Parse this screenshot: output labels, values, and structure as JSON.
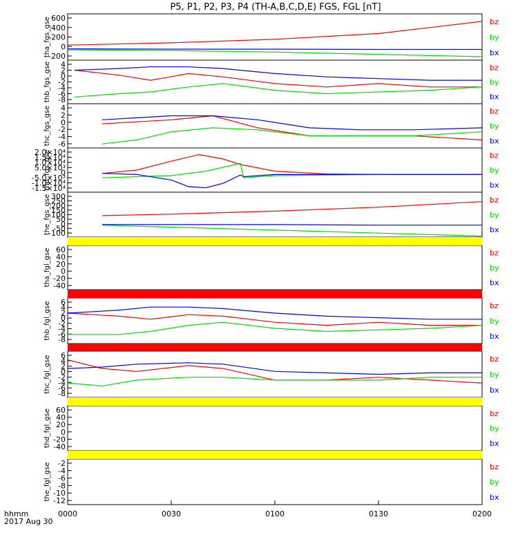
{
  "title": "P5, P1, P2, P3, P4 (TH-A,B,C,D,E) FGS, FGL [nT]",
  "x_axis": {
    "label_line1": "hhmm",
    "label_line2": "2017 Aug 30",
    "ticks": [
      "0000",
      "0030",
      "0100",
      "0130",
      "0200"
    ]
  },
  "legend": [
    "bz",
    "by",
    "bx"
  ],
  "colors": {
    "bz": "#ff0000",
    "by": "#00dd00",
    "bx": "#0000ff",
    "flag_yellow": "#ffff00",
    "flag_red": "#ff0000"
  },
  "chart_data": [
    {
      "type": "line",
      "ylabel": "tha_fgs_gse",
      "ylim": [
        -200,
        600
      ],
      "ytick_labels": [
        "600",
        "400",
        "200",
        "0",
        "-200"
      ],
      "series": [
        {
          "name": "bz",
          "x": [
            0,
            30,
            60,
            90,
            120
          ],
          "y": [
            60,
            100,
            160,
            260,
            470
          ]
        },
        {
          "name": "by",
          "x": [
            0,
            30,
            60,
            90,
            120
          ],
          "y": [
            -20,
            -35,
            -60,
            -100,
            -140
          ]
        },
        {
          "name": "bx",
          "x": [
            0,
            30,
            60,
            90,
            120
          ],
          "y": [
            -5,
            -10,
            -10,
            -15,
            -15
          ]
        }
      ]
    },
    {
      "type": "line",
      "ylabel": "thb_fgs_gse",
      "ylim": [
        -8,
        5
      ],
      "ytick_labels": [
        "4",
        "2",
        "0",
        "-2",
        "-4",
        "-6",
        "-8"
      ],
      "series": [
        {
          "name": "bz",
          "x": [
            2,
            15,
            24,
            35,
            45,
            60,
            75,
            90,
            105,
            120
          ],
          "y": [
            2,
            0.5,
            -1,
            1,
            0,
            -2,
            -3,
            -2,
            -3,
            -3
          ]
        },
        {
          "name": "by",
          "x": [
            2,
            15,
            24,
            35,
            45,
            60,
            75,
            90,
            105,
            120
          ],
          "y": [
            -6,
            -5,
            -4.5,
            -3,
            -2,
            -4,
            -5,
            -4.5,
            -4,
            -3
          ]
        },
        {
          "name": "bx",
          "x": [
            2,
            15,
            24,
            35,
            45,
            60,
            75,
            90,
            105,
            120
          ],
          "y": [
            2,
            2.5,
            3,
            3,
            2.5,
            1,
            0,
            -0.5,
            -1,
            -1
          ]
        }
      ]
    },
    {
      "type": "line",
      "ylabel": "thc_fgs_gse",
      "ylim": [
        -6,
        5
      ],
      "ytick_labels": [
        "4",
        "2",
        "0",
        "-2",
        "-4",
        "-6"
      ],
      "series": [
        {
          "name": "bz",
          "x": [
            10,
            20,
            30,
            42,
            55,
            70,
            85,
            100,
            120
          ],
          "y": [
            0,
            0.5,
            1,
            2,
            -1,
            -3,
            -3,
            -3,
            -4
          ]
        },
        {
          "name": "by",
          "x": [
            10,
            20,
            30,
            42,
            55,
            70,
            85,
            100,
            120
          ],
          "y": [
            -5,
            -4,
            -2,
            -1,
            -1.5,
            -3,
            -3,
            -3,
            -2
          ]
        },
        {
          "name": "bx",
          "x": [
            10,
            20,
            30,
            42,
            55,
            70,
            85,
            100,
            120
          ],
          "y": [
            1,
            1.5,
            2,
            2,
            1,
            -1,
            -1.5,
            -1.5,
            -1
          ]
        }
      ]
    },
    {
      "type": "line",
      "ylabel": "thd_fgs_gse",
      "ylim": [
        -16000,
        24000
      ],
      "ytick_labels": [
        "2.0×10⁴",
        "1.5×10⁴",
        "1.0×10⁴",
        "5.0×10³",
        "0",
        "-5.0×10³",
        "-1.0×10⁴",
        "-1.5×10⁴"
      ],
      "series": [
        {
          "name": "bz",
          "x": [
            10,
            20,
            30,
            38,
            45,
            50,
            60,
            75,
            90,
            120
          ],
          "y": [
            1000,
            4000,
            12000,
            18000,
            14000,
            9000,
            3000,
            500,
            0,
            0
          ]
        },
        {
          "name": "by",
          "x": [
            10,
            20,
            30,
            40,
            50,
            51,
            60,
            90,
            120
          ],
          "y": [
            -3000,
            -2000,
            -1000,
            3000,
            10000,
            -3000,
            -1000,
            0,
            0
          ]
        },
        {
          "name": "bx",
          "x": [
            10,
            20,
            30,
            35,
            40,
            45,
            50,
            51,
            60,
            120
          ],
          "y": [
            1000,
            0,
            -5000,
            -11000,
            -12000,
            -8000,
            -500,
            -2000,
            0,
            0
          ]
        }
      ]
    },
    {
      "type": "line",
      "ylabel": "the_fgs_gse",
      "ylim": [
        -150,
        300
      ],
      "ytick_labels": [
        "300",
        "250",
        "200",
        "150",
        "100",
        "50",
        "0",
        "-50",
        "-100"
      ],
      "series": [
        {
          "name": "bz",
          "x": [
            10,
            30,
            60,
            90,
            120
          ],
          "y": [
            65,
            80,
            110,
            150,
            205
          ]
        },
        {
          "name": "by",
          "x": [
            10,
            30,
            60,
            90,
            120
          ],
          "y": [
            -30,
            -50,
            -80,
            -110,
            -140
          ]
        },
        {
          "name": "bx",
          "x": [
            10,
            30,
            60,
            90,
            120
          ],
          "y": [
            -25,
            -25,
            -25,
            -30,
            -30
          ]
        }
      ]
    },
    {
      "type": "line",
      "ylabel": "tha_fgl_gse",
      "ylim": [
        -50,
        70
      ],
      "ytick_labels": [
        "60",
        "40",
        "20",
        "0",
        "-20",
        "-40"
      ],
      "series": []
    },
    {
      "type": "line",
      "ylabel": "thb_fgl_gse",
      "ylim": [
        -9,
        6
      ],
      "ytick_labels": [
        "6",
        "4",
        "2",
        "0",
        "-2",
        "-4",
        "-6",
        "-8"
      ],
      "series": [
        {
          "name": "bz",
          "x": [
            0,
            15,
            24,
            35,
            45,
            60,
            75,
            90,
            105,
            120
          ],
          "y": [
            1,
            0,
            -1,
            0.5,
            0,
            -2,
            -3,
            -2,
            -3,
            -3
          ]
        },
        {
          "name": "by",
          "x": [
            0,
            15,
            24,
            35,
            45,
            60,
            75,
            90,
            105,
            120
          ],
          "y": [
            -6,
            -6,
            -5,
            -3,
            -2,
            -4,
            -5,
            -4.5,
            -4,
            -3
          ]
        },
        {
          "name": "bx",
          "x": [
            0,
            15,
            24,
            35,
            45,
            60,
            75,
            90,
            105,
            120
          ],
          "y": [
            1,
            2,
            3,
            3,
            2.5,
            1,
            0,
            -0.5,
            -1,
            -1
          ]
        }
      ]
    },
    {
      "type": "line",
      "ylabel": "thc_fgl_gse",
      "ylim": [
        -9,
        7
      ],
      "ytick_labels": [
        "6",
        "4",
        "2",
        "0",
        "-2",
        "-4",
        "-6",
        "-8"
      ],
      "series": [
        {
          "name": "bz",
          "x": [
            0,
            10,
            20,
            35,
            45,
            60,
            75,
            90,
            105,
            120
          ],
          "y": [
            4,
            1,
            0,
            2,
            1,
            -3,
            -3,
            -2,
            -3,
            -4
          ]
        },
        {
          "name": "by",
          "x": [
            0,
            10,
            20,
            35,
            45,
            60,
            75,
            90,
            105,
            120
          ],
          "y": [
            -4,
            -5,
            -3,
            -2,
            -2,
            -3,
            -3,
            -3,
            -2,
            -2
          ]
        },
        {
          "name": "bx",
          "x": [
            0,
            10,
            20,
            35,
            45,
            60,
            75,
            90,
            105,
            120
          ],
          "y": [
            1,
            1.5,
            2.5,
            3,
            2.5,
            0,
            -0.5,
            -1,
            -0.5,
            -0.5
          ]
        }
      ]
    },
    {
      "type": "line",
      "ylabel": "thd_fgl_gse",
      "ylim": [
        -50,
        70
      ],
      "ytick_labels": [
        "60",
        "40",
        "20",
        "0",
        "-20",
        "-40"
      ],
      "series": []
    },
    {
      "type": "line",
      "ylabel": "the_fgl_gse",
      "ylim": [
        -13,
        0
      ],
      "ytick_labels": [
        "-2",
        "-4",
        "-6",
        "-8",
        "-10",
        "-12"
      ],
      "series": []
    }
  ]
}
